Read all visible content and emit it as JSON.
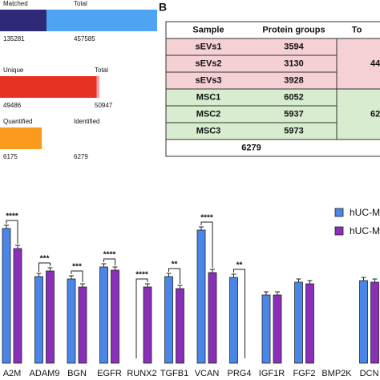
{
  "panel_label": "B",
  "chart_data": [
    {
      "type": "progress",
      "rows": [
        {
          "label": "Matched",
          "value": 135281,
          "total_label": "Total",
          "total": 457585,
          "color": "#2e2a78",
          "total_color": "#4ea4f2"
        },
        {
          "label": "Unique",
          "value": 49486,
          "total_label": "Total",
          "total": 50947,
          "color": "#e53222",
          "total_color": "#f4a0a8"
        },
        {
          "label": "Quantified",
          "value": 6175,
          "total_label": "Identified",
          "total": 6279,
          "color": "#fb9a1c",
          "total_color": "#ffffff"
        }
      ]
    },
    {
      "type": "bar",
      "categories": [
        "A2M",
        "ADAM9",
        "BGN",
        "EGFR",
        "RUNX2",
        "TGFB1",
        "VCAN",
        "PRG4",
        "IGF1R",
        "FGF2",
        "BMP2K",
        "DCN"
      ],
      "series": [
        {
          "name": "hUC-M",
          "color": "#4a86e8",
          "values": [
            168,
            108,
            105,
            120,
            0,
            108,
            166,
            107,
            85,
            101,
            0,
            103
          ]
        },
        {
          "name": "hUC-M",
          "color": "#8a2fb8",
          "values": [
            143,
            115,
            95,
            116,
            95,
            93,
            113,
            0,
            85,
            99,
            0,
            101
          ]
        }
      ],
      "significance": [
        "****",
        "***",
        "***",
        "****",
        "****",
        "**",
        "****",
        "**",
        null,
        null,
        null,
        null
      ],
      "ylim": [
        0,
        180
      ]
    }
  ],
  "table": {
    "header": [
      "Sample",
      "Protein groups",
      "To"
    ],
    "rows": [
      [
        "sEVs1",
        3594
      ],
      [
        "sEVs2",
        3130
      ],
      [
        "sEVs3",
        3928
      ],
      [
        "MSC1",
        6052
      ],
      [
        "MSC2",
        5937
      ],
      [
        "MSC3",
        5973
      ]
    ],
    "groups": [
      {
        "label": "44",
        "color": "#f5d0d4"
      },
      {
        "label": "62",
        "color": "#d8eccf"
      }
    ],
    "footer": 6279
  }
}
